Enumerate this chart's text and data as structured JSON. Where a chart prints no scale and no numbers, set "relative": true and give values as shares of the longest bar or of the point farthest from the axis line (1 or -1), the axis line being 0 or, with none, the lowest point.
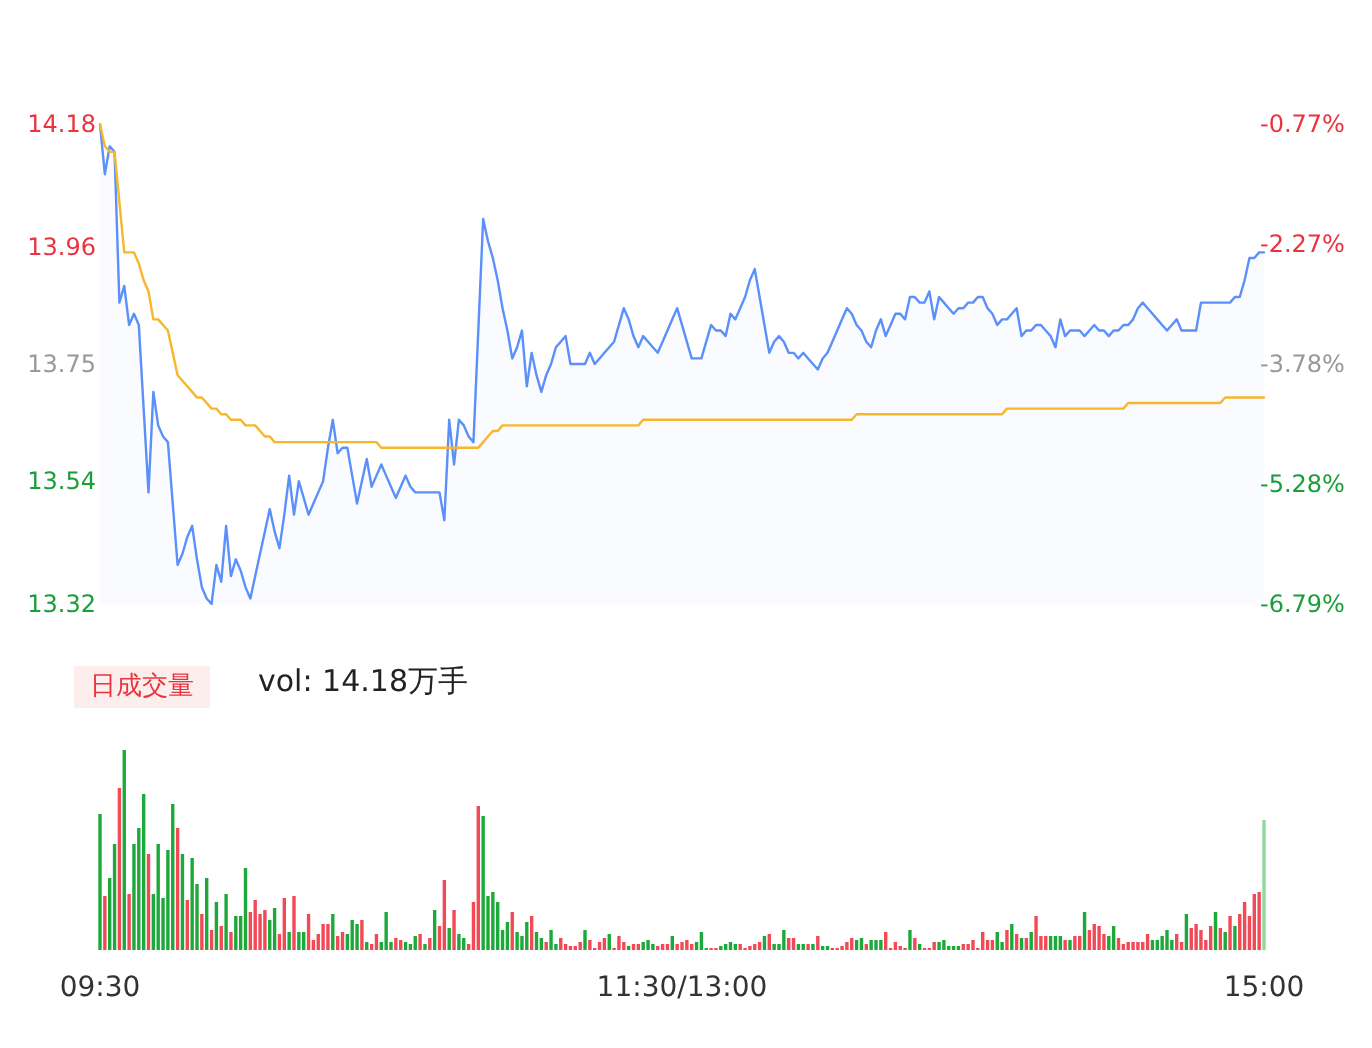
{
  "chart_data": [
    {
      "type": "line",
      "ylim": [
        13.32,
        14.18
      ],
      "yticks": [
        13.32,
        13.54,
        13.75,
        13.96,
        14.18
      ],
      "y2lim": [
        -6.79,
        -0.77
      ],
      "y2ticks": [
        {
          "value": -6.79,
          "label": "-6.79%"
        },
        {
          "value": -5.28,
          "label": "-5.28%"
        },
        {
          "value": -3.78,
          "label": "-3.78%"
        },
        {
          "value": -2.27,
          "label": "-2.27%"
        },
        {
          "value": -0.77,
          "label": "-0.77%"
        }
      ],
      "tick_labels": "y",
      "marker": "none",
      "line_style": "solid",
      "categories": [
        null,
        null,
        null,
        null,
        null,
        null,
        null,
        null,
        null,
        null,
        null,
        null,
        null,
        null,
        null,
        null,
        null,
        null,
        null,
        null,
        null,
        null,
        null,
        null,
        null,
        null,
        null,
        null,
        null,
        null,
        null,
        null,
        null,
        null,
        null,
        null,
        null,
        null,
        null,
        null,
        null,
        null,
        null,
        null,
        null,
        null,
        null,
        null,
        null,
        null,
        null,
        null,
        null,
        null,
        null,
        null,
        null,
        null,
        null,
        null,
        null,
        null,
        null,
        null,
        null,
        null,
        null,
        null,
        null,
        null,
        null,
        null,
        null,
        null,
        null,
        null,
        null,
        null,
        null,
        null,
        null,
        null,
        null,
        null,
        null,
        null,
        null,
        null,
        null,
        null,
        null,
        null,
        null,
        null,
        null,
        null,
        null,
        null,
        null,
        null,
        null,
        null,
        null,
        null,
        null,
        null,
        null,
        null,
        null,
        null,
        null,
        null,
        null,
        null,
        null,
        null,
        null,
        null,
        null,
        null,
        null,
        null,
        null,
        null,
        null,
        null,
        null,
        null,
        null,
        null,
        null,
        null,
        null,
        null,
        null,
        null,
        null,
        null,
        null,
        null,
        null,
        null,
        null,
        null,
        null,
        null,
        null,
        null,
        null,
        null,
        null,
        null,
        null,
        null,
        null,
        null,
        null,
        null,
        null,
        null,
        null,
        null,
        null,
        null,
        null,
        null,
        null,
        null,
        null,
        null,
        null,
        null,
        null,
        null,
        null,
        null,
        null,
        null,
        null,
        null,
        null,
        null,
        null,
        null,
        null,
        null,
        null,
        null,
        null,
        null,
        null,
        null,
        null,
        null,
        null,
        null,
        null,
        null,
        null,
        null,
        null,
        null,
        null,
        null,
        null,
        null,
        null,
        null,
        null,
        null,
        null,
        null,
        null,
        null,
        null,
        null,
        null,
        null,
        null,
        null,
        null,
        null,
        null,
        null,
        null,
        null,
        null,
        null,
        null,
        null,
        null,
        null,
        null,
        null,
        null,
        null,
        null,
        null,
        null,
        null,
        null
      ],
      "series": [
        {
          "type": "area",
          "color": "#5b8ff9",
          "values": [
            14.18,
            14.09,
            14.14,
            14.13,
            13.86,
            13.89,
            13.82,
            13.84,
            13.82,
            13.67,
            13.52,
            13.7,
            13.64,
            13.62,
            13.61,
            13.5,
            13.39,
            13.41,
            13.44,
            13.46,
            13.4,
            13.35,
            13.33,
            13.32,
            13.39,
            13.36,
            13.46,
            13.37,
            13.4,
            13.38,
            13.35,
            13.33,
            13.37,
            13.41,
            13.45,
            13.49,
            13.45,
            13.42,
            13.48,
            13.55,
            13.48,
            13.54,
            13.51,
            13.48,
            13.5,
            13.52,
            13.54,
            13.6,
            13.65,
            13.59,
            13.6,
            13.6,
            13.55,
            13.5,
            13.54,
            13.58,
            13.53,
            13.55,
            13.57,
            13.55,
            13.53,
            13.51,
            13.53,
            13.55,
            13.53,
            13.52,
            13.52,
            13.52,
            13.52,
            13.52,
            13.52,
            13.47,
            13.65,
            13.57,
            13.65,
            13.64,
            13.62,
            13.61,
            13.81,
            14.01,
            13.97,
            13.94,
            13.9,
            13.85,
            13.81,
            13.76,
            13.78,
            13.81,
            13.71,
            13.77,
            13.73,
            13.7,
            13.73,
            13.75,
            13.78,
            13.79,
            13.8,
            13.75,
            13.75,
            13.75,
            13.75,
            13.77,
            13.75,
            13.76,
            13.77,
            13.78,
            13.79,
            13.82,
            13.85,
            13.83,
            13.8,
            13.78,
            13.8,
            13.79,
            13.78,
            13.77,
            13.79,
            13.81,
            13.83,
            13.85,
            13.82,
            13.79,
            13.76,
            13.76,
            13.76,
            13.79,
            13.82,
            13.81,
            13.81,
            13.8,
            13.84,
            13.83,
            13.85,
            13.87,
            13.9,
            13.92,
            13.87,
            13.82,
            13.77,
            13.79,
            13.8,
            13.79,
            13.77,
            13.77,
            13.76,
            13.77,
            13.76,
            13.75,
            13.74,
            13.76,
            13.77,
            13.79,
            13.81,
            13.83,
            13.85,
            13.84,
            13.82,
            13.81,
            13.79,
            13.78,
            13.81,
            13.83,
            13.8,
            13.82,
            13.84,
            13.84,
            13.83,
            13.87,
            13.87,
            13.86,
            13.86,
            13.88,
            13.83,
            13.87,
            13.86,
            13.85,
            13.84,
            13.85,
            13.85,
            13.86,
            13.86,
            13.87,
            13.87,
            13.85,
            13.84,
            13.82,
            13.83,
            13.83,
            13.84,
            13.85,
            13.8,
            13.81,
            13.81,
            13.82,
            13.82,
            13.81,
            13.8,
            13.78,
            13.83,
            13.8,
            13.81,
            13.81,
            13.81,
            13.8,
            13.81,
            13.82,
            13.81,
            13.81,
            13.8,
            13.81,
            13.81,
            13.82,
            13.82,
            13.83,
            13.85,
            13.86,
            13.85,
            13.84,
            13.83,
            13.82,
            13.81,
            13.82,
            13.83,
            13.81,
            13.81,
            13.81,
            13.81,
            13.86,
            13.86,
            13.86,
            13.86,
            13.86,
            13.86,
            13.86,
            13.87,
            13.87,
            13.9,
            13.94,
            13.94,
            13.95,
            13.95
          ]
        },
        {
          "type": "line",
          "color": "#f8b62c",
          "values": [
            14.18,
            14.14,
            14.13,
            14.13,
            14.04,
            13.95,
            13.95,
            13.95,
            13.93,
            13.9,
            13.88,
            13.83,
            13.83,
            13.82,
            13.81,
            13.77,
            13.73,
            13.72,
            13.71,
            13.7,
            13.69,
            13.69,
            13.68,
            13.67,
            13.67,
            13.66,
            13.66,
            13.65,
            13.65,
            13.65,
            13.64,
            13.64,
            13.64,
            13.63,
            13.62,
            13.62,
            13.61,
            13.61,
            13.61,
            13.61,
            13.61,
            13.61,
            13.61,
            13.61,
            13.61,
            13.61,
            13.61,
            13.61,
            13.61,
            13.61,
            13.61,
            13.61,
            13.61,
            13.61,
            13.61,
            13.61,
            13.61,
            13.61,
            13.6,
            13.6,
            13.6,
            13.6,
            13.6,
            13.6,
            13.6,
            13.6,
            13.6,
            13.6,
            13.6,
            13.6,
            13.6,
            13.6,
            13.6,
            13.6,
            13.6,
            13.6,
            13.6,
            13.6,
            13.6,
            13.61,
            13.62,
            13.63,
            13.63,
            13.64,
            13.64,
            13.64,
            13.64,
            13.64,
            13.64,
            13.64,
            13.64,
            13.64,
            13.64,
            13.64,
            13.64,
            13.64,
            13.64,
            13.64,
            13.64,
            13.64,
            13.64,
            13.64,
            13.64,
            13.64,
            13.64,
            13.64,
            13.64,
            13.64,
            13.64,
            13.64,
            13.64,
            13.64,
            13.65,
            13.65,
            13.65,
            13.65,
            13.65,
            13.65,
            13.65,
            13.65,
            13.65,
            13.65,
            13.65,
            13.65,
            13.65,
            13.65,
            13.65,
            13.65,
            13.65,
            13.65,
            13.65,
            13.65,
            13.65,
            13.65,
            13.65,
            13.65,
            13.65,
            13.65,
            13.65,
            13.65,
            13.65,
            13.65,
            13.65,
            13.65,
            13.65,
            13.65,
            13.65,
            13.65,
            13.65,
            13.65,
            13.65,
            13.65,
            13.65,
            13.65,
            13.65,
            13.65,
            13.66,
            13.66,
            13.66,
            13.66,
            13.66,
            13.66,
            13.66,
            13.66,
            13.66,
            13.66,
            13.66,
            13.66,
            13.66,
            13.66,
            13.66,
            13.66,
            13.66,
            13.66,
            13.66,
            13.66,
            13.66,
            13.66,
            13.66,
            13.66,
            13.66,
            13.66,
            13.66,
            13.66,
            13.66,
            13.66,
            13.66,
            13.67,
            13.67,
            13.67,
            13.67,
            13.67,
            13.67,
            13.67,
            13.67,
            13.67,
            13.67,
            13.67,
            13.67,
            13.67,
            13.67,
            13.67,
            13.67,
            13.67,
            13.67,
            13.67,
            13.67,
            13.67,
            13.67,
            13.67,
            13.67,
            13.67,
            13.68,
            13.68,
            13.68,
            13.68,
            13.68,
            13.68,
            13.68,
            13.68,
            13.68,
            13.68,
            13.68,
            13.68,
            13.68,
            13.68,
            13.68,
            13.68,
            13.68,
            13.68,
            13.68,
            13.68,
            13.69,
            13.69,
            13.69,
            13.69,
            13.69,
            13.69,
            13.69,
            13.69,
            13.69
          ]
        }
      ]
    },
    {
      "type": "bar",
      "relative": true,
      "annotations": [
        "日成交量",
        "vol: 14.18万手"
      ],
      "tick_labels": "x",
      "categories": [
        "09:30",
        null,
        null,
        null,
        null,
        null,
        null,
        null,
        null,
        null,
        null,
        null,
        null,
        null,
        null,
        null,
        null,
        null,
        null,
        null,
        null,
        null,
        null,
        null,
        null,
        null,
        null,
        null,
        null,
        null,
        null,
        null,
        null,
        null,
        null,
        null,
        null,
        null,
        null,
        null,
        null,
        null,
        null,
        null,
        null,
        null,
        null,
        null,
        null,
        null,
        null,
        null,
        null,
        null,
        null,
        null,
        null,
        null,
        null,
        null,
        null,
        null,
        null,
        null,
        null,
        null,
        null,
        null,
        null,
        null,
        null,
        null,
        null,
        null,
        null,
        null,
        null,
        null,
        null,
        null,
        null,
        null,
        null,
        null,
        null,
        null,
        null,
        null,
        null,
        null,
        null,
        null,
        null,
        null,
        null,
        null,
        null,
        null,
        null,
        null,
        null,
        null,
        null,
        null,
        null,
        null,
        null,
        null,
        null,
        null,
        null,
        null,
        null,
        null,
        null,
        null,
        null,
        null,
        null,
        null,
        "11:30/13:00",
        null,
        null,
        null,
        null,
        null,
        null,
        null,
        null,
        null,
        null,
        null,
        null,
        null,
        null,
        null,
        null,
        null,
        null,
        null,
        null,
        null,
        null,
        null,
        null,
        null,
        null,
        null,
        null,
        null,
        null,
        null,
        null,
        null,
        null,
        null,
        null,
        null,
        null,
        null,
        null,
        null,
        null,
        null,
        null,
        null,
        null,
        null,
        null,
        null,
        null,
        null,
        null,
        null,
        null,
        null,
        null,
        null,
        null,
        null,
        null,
        null,
        null,
        null,
        null,
        null,
        null,
        null,
        null,
        null,
        null,
        null,
        null,
        null,
        null,
        null,
        null,
        null,
        null,
        null,
        null,
        null,
        null,
        null,
        null,
        null,
        null,
        null,
        null,
        null,
        null,
        null,
        null,
        null,
        null,
        null,
        null,
        null,
        null,
        null,
        null,
        null,
        null,
        null,
        null,
        null,
        null,
        null,
        null,
        null,
        null,
        null,
        null,
        null,
        null,
        null,
        null,
        null,
        null,
        null,
        "15:00"
      ],
      "values": [
        0.68,
        0.27,
        0.36,
        0.53,
        0.81,
        1,
        0.28,
        0.53,
        0.61,
        0.78,
        0.48,
        0.28,
        0.53,
        0.26,
        0.5,
        0.73,
        0.61,
        0.48,
        0.25,
        0.46,
        0.33,
        0.18,
        0.36,
        0.1,
        0.24,
        0.12,
        0.28,
        0.09,
        0.17,
        0.17,
        0.41,
        0.19,
        0.25,
        0.18,
        0.2,
        0.15,
        0.21,
        0.08,
        0.26,
        0.09,
        0.27,
        0.09,
        0.09,
        0.18,
        0.05,
        0.08,
        0.13,
        0.13,
        0.18,
        0.07,
        0.09,
        0.08,
        0.15,
        0.13,
        0.15,
        0.04,
        0.03,
        0.08,
        0.04,
        0.19,
        0.04,
        0.06,
        0.05,
        0.04,
        0.03,
        0.07,
        0.08,
        0.03,
        0.06,
        0.2,
        0.12,
        0.35,
        0.11,
        0.2,
        0.08,
        0.06,
        0.03,
        0.24,
        0.72,
        0.67,
        0.27,
        0.29,
        0.24,
        0.1,
        0.14,
        0.19,
        0.09,
        0.07,
        0.14,
        0.17,
        0.09,
        0.06,
        0.04,
        0.1,
        0.03,
        0.06,
        0.03,
        0.02,
        0.02,
        0.04,
        0.1,
        0.05,
        0.01,
        0.04,
        0.06,
        0.08,
        0.01,
        0.07,
        0.04,
        0.02,
        0.03,
        0.03,
        0.04,
        0.05,
        0.03,
        0.02,
        0.03,
        0.03,
        0.07,
        0.03,
        0.04,
        0.05,
        0.03,
        0.04,
        0.09,
        0.01,
        0.01,
        0.01,
        0.02,
        0.03,
        0.04,
        0.03,
        0.03,
        0.01,
        0.02,
        0.03,
        0.04,
        0.07,
        0.08,
        0.03,
        0.03,
        0.1,
        0.06,
        0.06,
        0.03,
        0.03,
        0.03,
        0.03,
        0.07,
        0.02,
        0.02,
        0.01,
        0.01,
        0.02,
        0.04,
        0.06,
        0.05,
        0.06,
        0.03,
        0.05,
        0.05,
        0.05,
        0.09,
        0.01,
        0.04,
        0.02,
        0.01,
        0.1,
        0.06,
        0.03,
        0.01,
        0.01,
        0.04,
        0.04,
        0.05,
        0.02,
        0.02,
        0.02,
        0.03,
        0.03,
        0.05,
        0.01,
        0.09,
        0.05,
        0.05,
        0.09,
        0.04,
        0.1,
        0.13,
        0.08,
        0.06,
        0.06,
        0.09,
        0.17,
        0.07,
        0.07,
        0.07,
        0.07,
        0.07,
        0.05,
        0.05,
        0.07,
        0.07,
        0.19,
        0.1,
        0.13,
        0.12,
        0.08,
        0.07,
        0.12,
        0.06,
        0.03,
        0.04,
        0.04,
        0.04,
        0.04,
        0.08,
        0.05,
        0.05,
        0.07,
        0.1,
        0.05,
        0.08,
        0.04,
        0.18,
        0.11,
        0.13,
        0.1,
        0.05,
        0.12,
        0.19,
        0.11,
        0.09,
        0.17,
        0.12,
        0.18,
        0.24,
        0.17,
        0.28,
        0.29,
        0.65
      ],
      "colors": [
        "#1da83a",
        "#f24957",
        "#1da83a",
        "#1da83a",
        "#f24957",
        "#1da83a",
        "#f24957",
        "#1da83a",
        "#1da83a",
        "#1da83a",
        "#f24957",
        "#1da83a",
        "#1da83a",
        "#1da83a",
        "#1da83a",
        "#1da83a",
        "#f24957",
        "#1da83a",
        "#f24957",
        "#1da83a",
        "#1da83a",
        "#f24957",
        "#1da83a",
        "#f24957",
        "#1da83a",
        "#f24957",
        "#1da83a",
        "#f24957",
        "#1da83a",
        "#1da83a",
        "#1da83a",
        "#f24957",
        "#f24957",
        "#f24957",
        "#f24957",
        "#1da83a",
        "#1da83a",
        "#f24957",
        "#f24957",
        "#1da83a",
        "#f24957",
        "#1da83a",
        "#1da83a",
        "#f24957",
        "#f24957",
        "#f24957",
        "#f24957",
        "#f24957",
        "#1da83a",
        "#f24957",
        "#f24957",
        "#1da83a",
        "#1da83a",
        "#1da83a",
        "#f24957",
        "#1da83a",
        "#f24957",
        "#f24957",
        "#1da83a",
        "#1da83a",
        "#1da83a",
        "#f24957",
        "#f24957",
        "#1da83a",
        "#1da83a",
        "#1da83a",
        "#f24957",
        "#1da83a",
        "#f24957",
        "#1da83a",
        "#f24957",
        "#f24957",
        "#1da83a",
        "#f24957",
        "#1da83a",
        "#1da83a",
        "#f24957",
        "#f24957",
        "#f24957",
        "#1da83a",
        "#1da83a",
        "#1da83a",
        "#1da83a",
        "#1da83a",
        "#1da83a",
        "#f24957",
        "#1da83a",
        "#1da83a",
        "#1da83a",
        "#f24957",
        "#1da83a",
        "#1da83a",
        "#f24957",
        "#1da83a",
        "#1da83a",
        "#f24957",
        "#f24957",
        "#f24957",
        "#f24957",
        "#f24957",
        "#1da83a",
        "#f24957",
        "#f24957",
        "#f24957",
        "#f24957",
        "#1da83a",
        "#f24957",
        "#f24957",
        "#f24957",
        "#1da83a",
        "#f24957",
        "#f24957",
        "#1da83a",
        "#1da83a",
        "#1da83a",
        "#f24957",
        "#f24957",
        "#f24957",
        "#1da83a",
        "#f24957",
        "#f24957",
        "#f24957",
        "#f24957",
        "#1da83a",
        "#1da83a",
        "#1da83a",
        "#f24957",
        "#f24957",
        "#1da83a",
        "#1da83a",
        "#1da83a",
        "#1da83a",
        "#f24957",
        "#f24957",
        "#f24957",
        "#f24957",
        "#f24957",
        "#1da83a",
        "#f24957",
        "#1da83a",
        "#1da83a",
        "#1da83a",
        "#f24957",
        "#f24957",
        "#1da83a",
        "#1da83a",
        "#f24957",
        "#1da83a",
        "#f24957",
        "#1da83a",
        "#1da83a",
        "#f24957",
        "#f24957",
        "#f24957",
        "#f24957",
        "#f24957",
        "#1da83a",
        "#1da83a",
        "#f24957",
        "#1da83a",
        "#1da83a",
        "#1da83a",
        "#f24957",
        "#f24957",
        "#f24957",
        "#f24957",
        "#f24957",
        "#1da83a",
        "#f24957",
        "#1da83a",
        "#f24957",
        "#f24957",
        "#f24957",
        "#1da83a",
        "#1da83a",
        "#1da83a",
        "#1da83a",
        "#1da83a",
        "#f24957",
        "#f24957",
        "#f24957",
        "#f24957",
        "#f24957",
        "#f24957",
        "#f24957",
        "#1da83a",
        "#1da83a",
        "#f24957",
        "#1da83a",
        "#f24957",
        "#1da83a",
        "#f24957",
        "#1da83a",
        "#f24957",
        "#f24957",
        "#f24957",
        "#1da83a",
        "#1da83a",
        "#1da83a",
        "#f24957",
        "#1da83a",
        "#f24957",
        "#f24957",
        "#1da83a",
        "#f24957",
        "#f24957",
        "#f24957",
        "#f24957",
        "#1da83a",
        "#1da83a",
        "#f24957",
        "#f24957",
        "#f24957",
        "#f24957",
        "#f24957",
        "#f24957",
        "#f24957",
        "#1da83a",
        "#1da83a",
        "#1da83a",
        "#1da83a",
        "#1da83a",
        "#f24957",
        "#f24957",
        "#1da83a",
        "#f24957",
        "#f24957",
        "#f24957",
        "#f24957",
        "#f24957",
        "#1da83a",
        "#f24957",
        "#1da83a",
        "#f24957",
        "#1da83a",
        "#f24957",
        "#f24957",
        "#f24957",
        "#f24957",
        "#f24957",
        "#8fd99b"
      ]
    }
  ]
}
